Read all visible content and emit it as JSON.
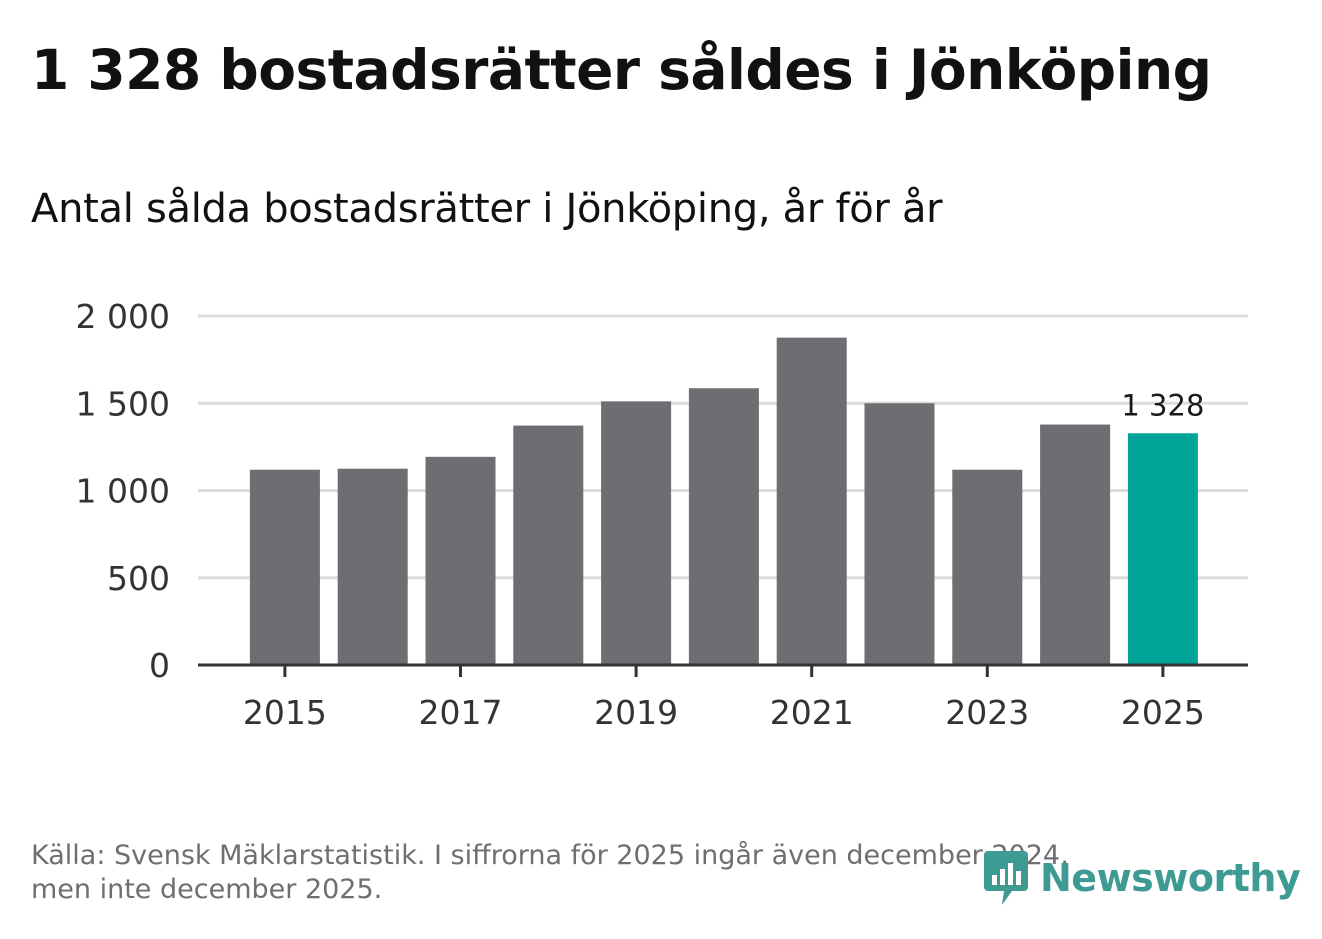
{
  "title": "1 328 bostadsrätter såldes i Jönköping",
  "subtitle": "Antal sålda bostadsrätter i Jönköping, år för år",
  "footer": {
    "source_line1": "Källa: Svensk Mäklarstatistik. I siffrorna för 2025 ingår även december 2024,",
    "source_line2": "men inte december 2025."
  },
  "brand": {
    "name": "Newsworthy",
    "icon": "newsworthy-logo-icon",
    "color": "#3d9b94"
  },
  "colors": {
    "bar": "#6e6d72",
    "highlight": "#00a499",
    "grid": "#dcdcdc",
    "axis": "#333333"
  },
  "chart_data": {
    "type": "bar",
    "categories": [
      "2015",
      "2016",
      "2017",
      "2018",
      "2019",
      "2020",
      "2021",
      "2022",
      "2023",
      "2024",
      "2025"
    ],
    "values": [
      1119,
      1125,
      1193,
      1372,
      1511,
      1586,
      1876,
      1500,
      1119,
      1378,
      1328
    ],
    "highlight_index": 10,
    "value_labels": [
      {
        "index": 10,
        "text": "1 328"
      }
    ],
    "x_tick_labels": [
      "2015",
      "2017",
      "2019",
      "2021",
      "2023",
      "2025"
    ],
    "y_ticks": [
      0,
      500,
      1000,
      1500,
      2000
    ],
    "y_tick_labels": [
      "0",
      "500",
      "1 000",
      "1 500",
      "2 000"
    ],
    "ylim": [
      0,
      2000
    ],
    "grid": true,
    "xlabel": "",
    "ylabel": ""
  }
}
